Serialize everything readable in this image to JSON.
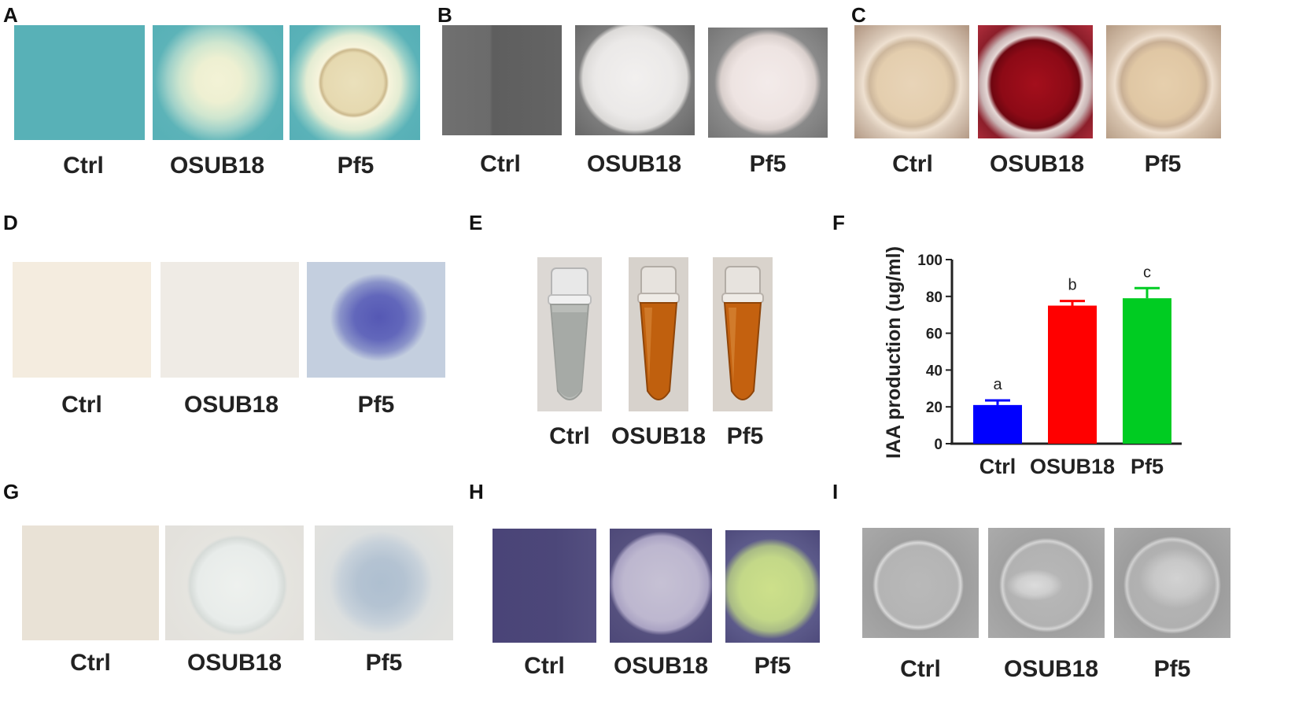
{
  "panels": {
    "A": {
      "letter": "A",
      "labels": [
        "Ctrl",
        "OSUB18",
        "Pf5"
      ]
    },
    "B": {
      "letter": "B",
      "labels": [
        "Ctrl",
        "OSUB18",
        "Pf5"
      ]
    },
    "C": {
      "letter": "C",
      "labels": [
        "Ctrl",
        "OSUB18",
        "Pf5"
      ]
    },
    "D": {
      "letter": "D",
      "labels": [
        "Ctrl",
        "OSUB18",
        "Pf5"
      ]
    },
    "E": {
      "letter": "E",
      "labels": [
        "Ctrl",
        "OSUB18",
        "Pf5"
      ]
    },
    "F": {
      "letter": "F"
    },
    "G": {
      "letter": "G",
      "labels": [
        "Ctrl",
        "OSUB18",
        "Pf5"
      ]
    },
    "H": {
      "letter": "H",
      "labels": [
        "Ctrl",
        "OSUB18",
        "Pf5"
      ]
    },
    "I": {
      "letter": "I",
      "labels": [
        "Ctrl",
        "OSUB18",
        "Pf5"
      ]
    }
  },
  "colors": {
    "cas_blue": "#59b3b8",
    "bar_ctrl": "#0000ff",
    "bar_osub18": "#ff0000",
    "bar_pf5": "#00cc22",
    "congo_red": "#8e0a18",
    "iaa_orange": "#c4600e",
    "crystal_violet": "#4b3f78"
  },
  "chart_data": {
    "type": "bar",
    "categories": [
      "Ctrl",
      "OSUB18",
      "Pf5"
    ],
    "values": [
      21,
      75,
      79
    ],
    "errors": [
      2.5,
      2.5,
      5.5
    ],
    "significance": [
      "a",
      "b",
      "c"
    ],
    "ylabel": "IAA production (ug/ml)",
    "ylim": [
      0,
      100
    ],
    "yticks": [
      0,
      20,
      40,
      60,
      80,
      100
    ],
    "grid": false
  }
}
